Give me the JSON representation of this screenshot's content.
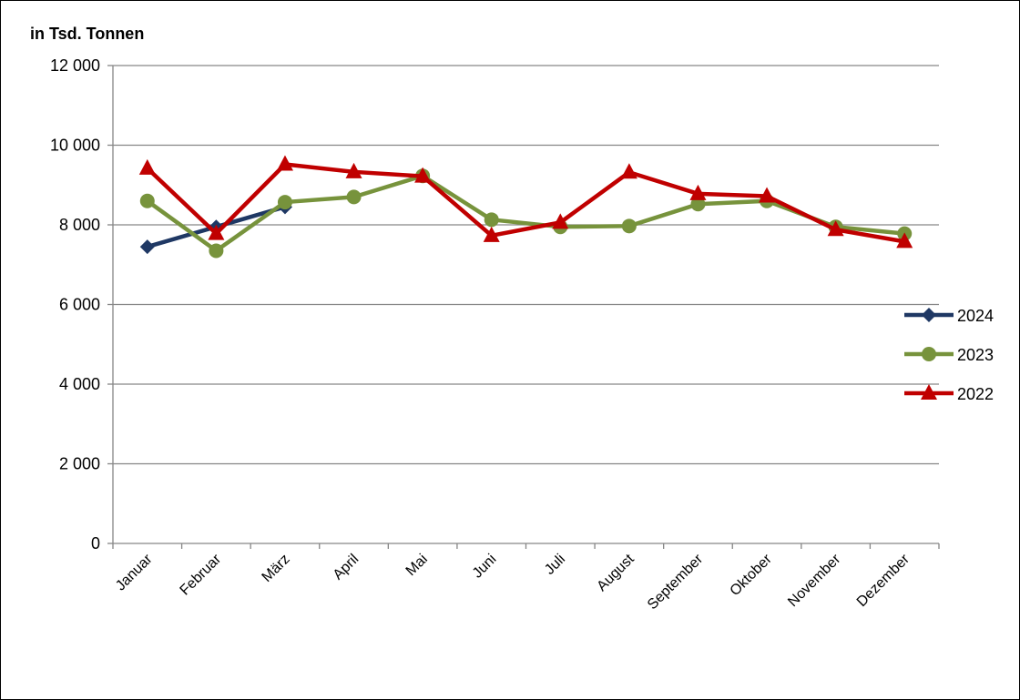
{
  "chart_data": {
    "type": "line",
    "ylabel": "in Tsd. Tonnen",
    "ylim": [
      0,
      12000
    ],
    "yticks": [
      {
        "value": 0,
        "label": "0"
      },
      {
        "value": 2000,
        "label": "2 000"
      },
      {
        "value": 4000,
        "label": "4 000"
      },
      {
        "value": 6000,
        "label": "6 000"
      },
      {
        "value": 8000,
        "label": "8 000"
      },
      {
        "value": 10000,
        "label": "10 000"
      },
      {
        "value": 12000,
        "label": "12 000"
      }
    ],
    "categories": [
      "Januar",
      "Februar",
      "März",
      "April",
      "Mai",
      "Juni",
      "Juli",
      "August",
      "September",
      "Oktober",
      "November",
      "Dezember"
    ],
    "grid": true,
    "legend": "right",
    "series": [
      {
        "name": "2024",
        "color": "#1f3864",
        "marker": "diamond",
        "values": [
          7450,
          7950,
          8450,
          null,
          null,
          null,
          null,
          null,
          null,
          null,
          null,
          null
        ]
      },
      {
        "name": "2023",
        "color": "#77933c",
        "marker": "circle",
        "values": [
          8600,
          7350,
          8570,
          8700,
          9230,
          8130,
          7950,
          7970,
          8520,
          8600,
          7950,
          7780
        ]
      },
      {
        "name": "2022",
        "color": "#c00000",
        "marker": "triangle",
        "values": [
          9420,
          7780,
          9520,
          9330,
          9220,
          7730,
          8060,
          9320,
          8780,
          8720,
          7880,
          7580
        ]
      }
    ]
  }
}
